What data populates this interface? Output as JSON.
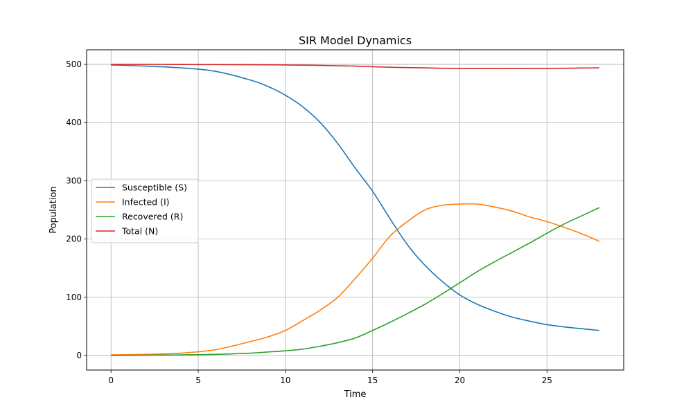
{
  "chart_data": {
    "type": "line",
    "title": "SIR Model Dynamics",
    "xlabel": "Time",
    "ylabel": "Population",
    "xlim": [
      -1.4,
      29.4
    ],
    "ylim": [
      -25,
      525
    ],
    "xticks": [
      0,
      5,
      10,
      15,
      20,
      25
    ],
    "yticks": [
      0,
      100,
      200,
      300,
      400,
      500
    ],
    "grid": true,
    "legend_position": "center-left",
    "x": [
      0,
      2,
      4,
      6,
      8,
      9,
      10,
      11,
      12,
      13,
      14,
      15,
      16,
      17,
      18,
      19,
      20,
      21,
      22,
      23,
      24,
      25,
      26,
      27,
      28
    ],
    "series": [
      {
        "name": "Susceptible (S)",
        "color": "#1f77b4",
        "values": [
          499,
          497,
          494,
          488,
          473,
          462,
          447,
          427,
          400,
          364,
          322,
          282,
          235,
          190,
          155,
          127,
          104,
          88,
          76,
          66,
          59,
          53,
          49,
          46,
          43
        ]
      },
      {
        "name": "Infected (I)",
        "color": "#ff7f0e",
        "values": [
          1,
          2,
          4,
          10,
          24,
          32,
          43,
          60,
          78,
          100,
          132,
          167,
          205,
          230,
          250,
          258,
          260,
          260,
          255,
          248,
          238,
          230,
          220,
          209,
          196
        ]
      },
      {
        "name": "Recovered (R)",
        "color": "#2ca02c",
        "values": [
          0,
          0.5,
          1,
          2,
          4,
          6,
          8,
          11,
          16,
          22,
          30,
          43,
          57,
          72,
          88,
          106,
          125,
          144,
          161,
          177,
          193,
          210,
          226,
          240,
          254
        ]
      },
      {
        "name": "Total (N)",
        "color": "#d62728",
        "values": [
          500,
          500,
          499.8,
          499.6,
          499.4,
          499.2,
          499,
          498.6,
          498.2,
          497.6,
          497,
          496,
          495,
          494.5,
          494,
          493.3,
          493,
          492.8,
          492.7,
          492.8,
          493,
          493,
          493.3,
          493.7,
          494
        ]
      }
    ]
  }
}
